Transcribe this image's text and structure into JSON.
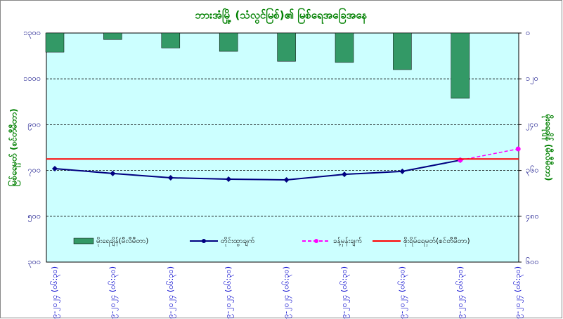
{
  "chart_data": {
    "type": "combo",
    "title": "ဘားအံမြို့ (သံလွင်မြစ်)၏ မြစ်ရေအခြေအနေ",
    "y_label": "မြစ်ရေမှတ် (စင်တီမီတာ)",
    "y2_label": "မိုးရေချိန် (မီလီမီတာ)",
    "categories": [
      "၄-၉-၂၀၂၄ (၀၆:၃၀)",
      "၅-၉-၂၀၂၄ (၀၆:၃၀)",
      "၆-၉-၂၀၂၄ (၀၆:၃၀)",
      "၇-၉-၂၀၂၄ (၀၆:၃၀)",
      "၈-၉-၂၀၂၄ (၀၆:၃၀)",
      "၉-၉-၂၀၂၄ (၀၆:၃၀)",
      "၁၀-၉-၂၀၂၄ (၀၆:၃၀)",
      "၁၁-၉-၂၀၂၄ (၀၆:၃၀)",
      "၁၂-၉-၂၀၂၄ (၀၆:၃၀)"
    ],
    "ylim": [
      300,
      1300
    ],
    "yticks": [
      {
        "value": 300,
        "label": "၃၀၀"
      },
      {
        "value": 500,
        "label": "၅၀၀"
      },
      {
        "value": 700,
        "label": "၇၀၀"
      },
      {
        "value": 900,
        "label": "၉၀၀"
      },
      {
        "value": 1100,
        "label": "၁၁၀၀"
      },
      {
        "value": 1300,
        "label": "၁၃၀၀"
      }
    ],
    "y2lim": [
      600,
      0
    ],
    "y2ticks": [
      {
        "value": 0,
        "label": "၀"
      },
      {
        "value": 120,
        "label": "၁၂၀"
      },
      {
        "value": 240,
        "label": "၂၄၀"
      },
      {
        "value": 360,
        "label": "၃၆၀"
      },
      {
        "value": 480,
        "label": "၄၈၀"
      },
      {
        "value": 600,
        "label": "၆၀၀"
      }
    ],
    "grid": true,
    "series": [
      {
        "name": "မိုးရေချိန်(မီလီမီတာ)",
        "kind": "bar",
        "axis": "y2",
        "color": "#339966",
        "values": [
          50,
          17,
          39,
          48,
          74,
          77,
          96,
          171,
          null
        ]
      },
      {
        "name": "တိုင်းထွာချက်",
        "kind": "line",
        "color": "#000080",
        "values": [
          708,
          687,
          668,
          662,
          659,
          683,
          696,
          745,
          null
        ]
      },
      {
        "name": "ခန့်မှန်းချက်",
        "kind": "dashed",
        "color": "#ff00ff",
        "values": [
          null,
          null,
          null,
          null,
          null,
          null,
          null,
          745,
          794
        ]
      },
      {
        "name": "စိုးရိမ်ရေမှတ်(စင်တီမီတာ)",
        "kind": "flat",
        "color": "#ff0000",
        "values": [
          750,
          750,
          750,
          750,
          750,
          750,
          750,
          750,
          750
        ]
      }
    ]
  }
}
